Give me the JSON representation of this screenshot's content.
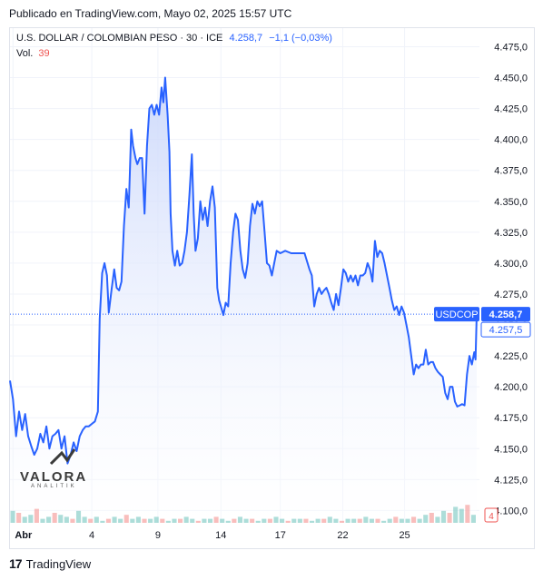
{
  "header": {
    "published": "Publicado en TradingView.com, Mayo 02, 2025 15:57 UTC"
  },
  "legend": {
    "symbol": "U.S. DOLLAR / COLOMBIAN PESO · 30 · ICE",
    "last": "4.258,7",
    "change": "−1,1 (−0,03%)",
    "vol_label": "Vol.",
    "vol_value": "39"
  },
  "labels": {
    "ticker": "USDCOP",
    "last_price": "4.258,7",
    "second_price": "4.257,5",
    "vol_axis": "4"
  },
  "watermark": {
    "name": "VALORA",
    "sub": "ANALITIK"
  },
  "footer": {
    "brand": "TradingView"
  },
  "colors": {
    "line": "#2962ff",
    "area_top": "#c9d6fb",
    "area_bottom": "#ffffff",
    "vol_up": "#26a69a",
    "vol_down": "#ef5350",
    "grid": "#f0f3fa"
  },
  "chart_data": {
    "type": "area",
    "title": "U.S. DOLLAR / COLOMBIAN PESO · 30 · ICE",
    "ylim": [
      4090,
      4490
    ],
    "y_ticks": [
      4100,
      4125,
      4150,
      4175,
      4200,
      4225,
      4250,
      4275,
      4300,
      4325,
      4350,
      4375,
      4400,
      4425,
      4450,
      4475
    ],
    "y_tick_labels": [
      "4.100,0",
      "4.125,0",
      "4.150,0",
      "4.175,0",
      "4.200,0",
      "4.225,0",
      "4.250,0",
      "4.275,0",
      "4.300,0",
      "4.325,0",
      "4.350,0",
      "4.375,0",
      "4.400,0",
      "4.425,0",
      "4.450,0",
      "4.475,0"
    ],
    "x_ticks": [
      {
        "label": "Abr",
        "t": 0.5
      },
      {
        "label": "4",
        "t": 13.5
      },
      {
        "label": "9",
        "t": 24.4
      },
      {
        "label": "14",
        "t": 34.8
      },
      {
        "label": "17",
        "t": 44.6
      },
      {
        "label": "22",
        "t": 54.9
      },
      {
        "label": "25",
        "t": 65.1
      }
    ],
    "xlim": [
      0,
      77
    ],
    "last_value": 4258.7,
    "series": [
      {
        "values": [
          [
            0,
            4205
          ],
          [
            0.5,
            4190
          ],
          [
            1,
            4160
          ],
          [
            1.5,
            4180
          ],
          [
            2,
            4165
          ],
          [
            2.5,
            4178
          ],
          [
            3,
            4160
          ],
          [
            3.5,
            4152
          ],
          [
            4,
            4145
          ],
          [
            4.5,
            4150
          ],
          [
            5,
            4162
          ],
          [
            5.5,
            4155
          ],
          [
            6,
            4168
          ],
          [
            6.5,
            4150
          ],
          [
            7,
            4160
          ],
          [
            7.5,
            4162
          ],
          [
            8,
            4165
          ],
          [
            8.5,
            4150
          ],
          [
            9,
            4160
          ],
          [
            9.5,
            4138
          ],
          [
            10,
            4145
          ],
          [
            10.5,
            4155
          ],
          [
            11,
            4148
          ],
          [
            11.5,
            4160
          ],
          [
            12,
            4165
          ],
          [
            12.5,
            4168
          ],
          [
            13,
            4168
          ],
          [
            13.5,
            4170
          ],
          [
            14,
            4172
          ],
          [
            14.5,
            4180
          ],
          [
            14.8,
            4255
          ],
          [
            15.2,
            4292
          ],
          [
            15.6,
            4300
          ],
          [
            16,
            4290
          ],
          [
            16.3,
            4260
          ],
          [
            16.8,
            4280
          ],
          [
            17.2,
            4295
          ],
          [
            17.6,
            4280
          ],
          [
            18,
            4278
          ],
          [
            18.4,
            4285
          ],
          [
            18.8,
            4330
          ],
          [
            19.2,
            4360
          ],
          [
            19.6,
            4345
          ],
          [
            20,
            4408
          ],
          [
            20.3,
            4395
          ],
          [
            20.7,
            4385
          ],
          [
            21,
            4380
          ],
          [
            21.4,
            4385
          ],
          [
            21.8,
            4385
          ],
          [
            22.2,
            4340
          ],
          [
            22.6,
            4395
          ],
          [
            23,
            4425
          ],
          [
            23.4,
            4428
          ],
          [
            23.8,
            4420
          ],
          [
            24.2,
            4428
          ],
          [
            24.6,
            4420
          ],
          [
            25,
            4442
          ],
          [
            25.3,
            4430
          ],
          [
            25.6,
            4450
          ],
          [
            26,
            4420
          ],
          [
            26.3,
            4390
          ],
          [
            26.5,
            4340
          ],
          [
            26.8,
            4310
          ],
          [
            27.2,
            4298
          ],
          [
            27.6,
            4310
          ],
          [
            28,
            4298
          ],
          [
            28.4,
            4300
          ],
          [
            28.8,
            4310
          ],
          [
            29.2,
            4325
          ],
          [
            29.6,
            4355
          ],
          [
            30,
            4388
          ],
          [
            30.3,
            4340
          ],
          [
            30.6,
            4310
          ],
          [
            31,
            4320
          ],
          [
            31.4,
            4350
          ],
          [
            31.8,
            4335
          ],
          [
            32.2,
            4345
          ],
          [
            32.6,
            4330
          ],
          [
            33,
            4350
          ],
          [
            33.4,
            4362
          ],
          [
            33.8,
            4345
          ],
          [
            34.2,
            4280
          ],
          [
            34.5,
            4270
          ],
          [
            34.8,
            4265
          ],
          [
            35.2,
            4258
          ],
          [
            35.6,
            4268
          ],
          [
            36,
            4265
          ],
          [
            36.4,
            4300
          ],
          [
            36.8,
            4325
          ],
          [
            37.2,
            4340
          ],
          [
            37.6,
            4335
          ],
          [
            38,
            4310
          ],
          [
            38.4,
            4295
          ],
          [
            38.8,
            4288
          ],
          [
            39.2,
            4300
          ],
          [
            39.6,
            4330
          ],
          [
            40,
            4348
          ],
          [
            40.4,
            4340
          ],
          [
            40.8,
            4350
          ],
          [
            41.2,
            4346
          ],
          [
            41.6,
            4350
          ],
          [
            42,
            4325
          ],
          [
            42.4,
            4300
          ],
          [
            42.8,
            4298
          ],
          [
            43.2,
            4290
          ],
          [
            43.6,
            4300
          ],
          [
            44,
            4310
          ],
          [
            44.6,
            4308
          ],
          [
            45.4,
            4310
          ],
          [
            46.4,
            4308
          ],
          [
            47.6,
            4308
          ],
          [
            48.6,
            4308
          ],
          [
            49.4,
            4295
          ],
          [
            49.8,
            4290
          ],
          [
            50.2,
            4265
          ],
          [
            50.6,
            4275
          ],
          [
            51,
            4280
          ],
          [
            51.4,
            4275
          ],
          [
            51.8,
            4278
          ],
          [
            52.2,
            4280
          ],
          [
            52.6,
            4275
          ],
          [
            53,
            4268
          ],
          [
            53.4,
            4262
          ],
          [
            53.8,
            4275
          ],
          [
            54.2,
            4266
          ],
          [
            54.6,
            4280
          ],
          [
            55,
            4295
          ],
          [
            55.4,
            4292
          ],
          [
            55.8,
            4285
          ],
          [
            56.2,
            4290
          ],
          [
            56.6,
            4285
          ],
          [
            57,
            4290
          ],
          [
            57.4,
            4282
          ],
          [
            57.8,
            4290
          ],
          [
            58.2,
            4290
          ],
          [
            58.6,
            4292
          ],
          [
            59,
            4300
          ],
          [
            59.4,
            4295
          ],
          [
            59.8,
            4285
          ],
          [
            60.2,
            4318
          ],
          [
            60.6,
            4305
          ],
          [
            61,
            4310
          ],
          [
            61.4,
            4308
          ],
          [
            61.8,
            4300
          ],
          [
            62.2,
            4290
          ],
          [
            62.6,
            4280
          ],
          [
            63,
            4270
          ],
          [
            63.4,
            4262
          ],
          [
            63.8,
            4265
          ],
          [
            64.2,
            4258
          ],
          [
            64.6,
            4265
          ],
          [
            65,
            4260
          ],
          [
            65.4,
            4250
          ],
          [
            65.8,
            4240
          ],
          [
            66.2,
            4225
          ],
          [
            66.6,
            4210
          ],
          [
            67,
            4218
          ],
          [
            67.4,
            4215
          ],
          [
            67.8,
            4218
          ],
          [
            68.2,
            4218
          ],
          [
            68.6,
            4230
          ],
          [
            69,
            4218
          ],
          [
            69.4,
            4220
          ],
          [
            69.8,
            4220
          ],
          [
            70.2,
            4215
          ],
          [
            70.6,
            4212
          ],
          [
            71,
            4210
          ],
          [
            71.4,
            4208
          ],
          [
            71.8,
            4195
          ],
          [
            72.2,
            4190
          ],
          [
            72.6,
            4200
          ],
          [
            73,
            4200
          ],
          [
            73.4,
            4188
          ],
          [
            73.8,
            4184
          ],
          [
            74.2,
            4185
          ],
          [
            74.6,
            4186
          ],
          [
            75,
            4185
          ],
          [
            75.4,
            4210
          ],
          [
            75.8,
            4225
          ],
          [
            76.2,
            4218
          ],
          [
            76.6,
            4228
          ],
          [
            76.8,
            4222
          ],
          [
            77,
            4258.7
          ]
        ]
      }
    ],
    "volume": {
      "max": 10,
      "bars": [
        6,
        5,
        3,
        4,
        7,
        2,
        3,
        5,
        4,
        3,
        2,
        6,
        3,
        2,
        3,
        1,
        2,
        3,
        2,
        4,
        2,
        3,
        2,
        2,
        3,
        2,
        1,
        2,
        2,
        3,
        2,
        1,
        2,
        2,
        3,
        2,
        1,
        2,
        3,
        2,
        2,
        1,
        2,
        2,
        3,
        2,
        1,
        2,
        2,
        2,
        1,
        2,
        2,
        3,
        2,
        1,
        2,
        2,
        2,
        3,
        2,
        2,
        1,
        2,
        3,
        2,
        2,
        3,
        2,
        4,
        5,
        3,
        6,
        5,
        8,
        7,
        9,
        4
      ]
    }
  }
}
